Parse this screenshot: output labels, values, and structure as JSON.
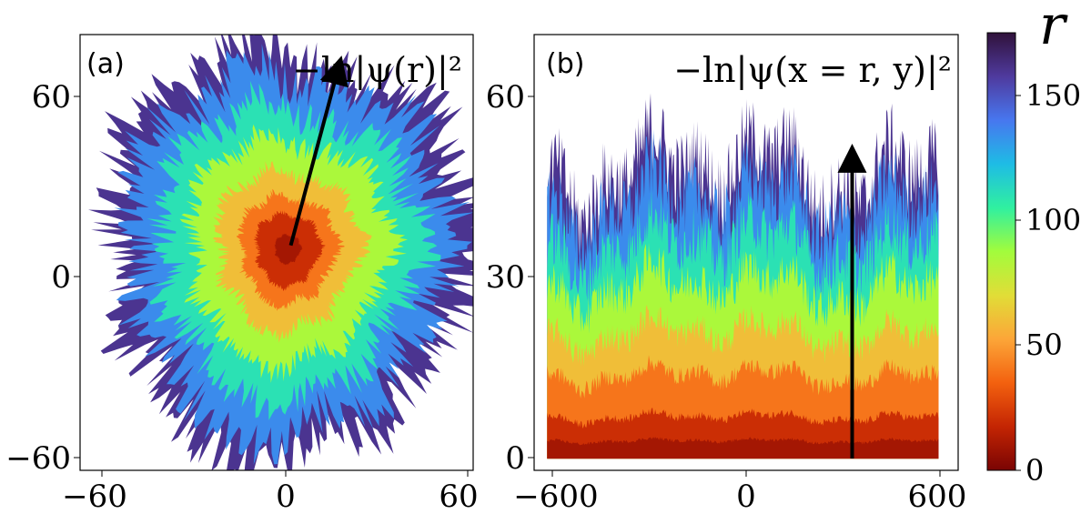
{
  "chart_data": [
    {
      "type": "heatmap",
      "panel_label": "(a)",
      "annotation": "−ln|ψ(r)|²",
      "xticks": [
        "−60",
        "0",
        "60"
      ],
      "yticks": [
        "60",
        "0",
        "−60"
      ],
      "xlim": [
        -65,
        60
      ],
      "ylim": [
        -62,
        62
      ],
      "color_levels": [
        0,
        10,
        20,
        40,
        60,
        85,
        110,
        135,
        160
      ],
      "level_radii": [
        4,
        10,
        15,
        22,
        31,
        40,
        49,
        55
      ],
      "arrow": {
        "from": [
          2,
          2
        ],
        "to": [
          17,
          52
        ]
      }
    },
    {
      "type": "heatmap",
      "panel_label": "(b)",
      "annotation": "−ln|ψ(x = r, y)|²",
      "xticks": [
        "−600",
        "0",
        "600"
      ],
      "yticks": [
        "60",
        "30",
        "0"
      ],
      "xlim": [
        -640,
        660
      ],
      "ylim": [
        -2,
        72
      ],
      "color_levels": [
        0,
        10,
        20,
        40,
        60,
        85,
        110,
        135,
        160
      ],
      "level_heights": [
        3,
        7,
        14,
        21,
        29,
        36,
        43,
        48
      ],
      "arrow": {
        "from": [
          335,
          0
        ],
        "to": [
          335,
          51
        ]
      }
    }
  ],
  "colorbar": {
    "label": "r",
    "ticks": [
      "0",
      "50",
      "100",
      "150"
    ],
    "tick_values": [
      0,
      50,
      100,
      150
    ],
    "range": [
      0,
      175
    ],
    "colors": [
      "#7a0403",
      "#c42503",
      "#f3610f",
      "#fca638",
      "#e1dd37",
      "#a2fc3c",
      "#30f0a0",
      "#1ebce5",
      "#4777ef",
      "#4f3a9e",
      "#30123b"
    ]
  }
}
